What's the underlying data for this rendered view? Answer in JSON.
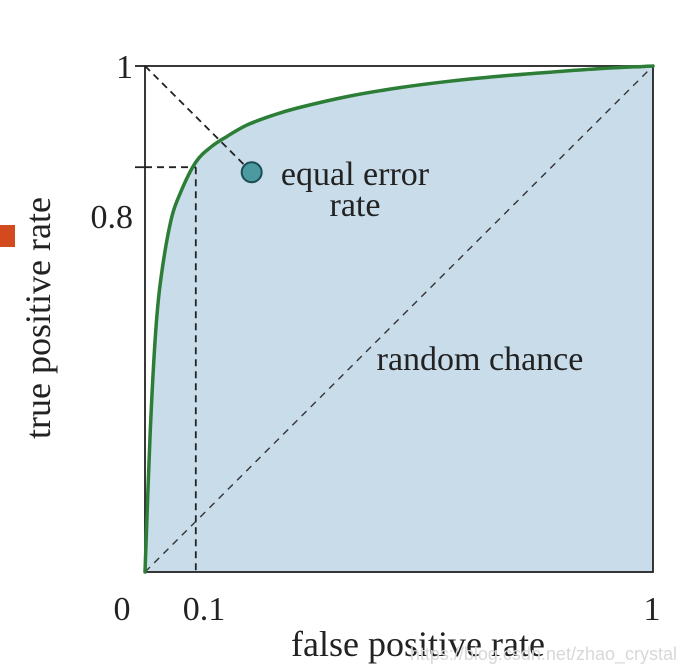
{
  "chart_data": {
    "type": "line",
    "title": "",
    "xlabel": "false positive rate",
    "ylabel": "true positive rate",
    "xlim": [
      0,
      1
    ],
    "ylim": [
      0,
      1
    ],
    "x_ticks": [
      "0",
      "0.1",
      "1"
    ],
    "y_ticks": [
      "0.8",
      "1"
    ],
    "series": [
      {
        "kind": "roc-curve",
        "x": [
          0,
          0.01,
          0.02,
          0.03,
          0.05,
          0.07,
          0.1,
          0.13,
          0.16,
          0.2,
          0.25,
          0.3,
          0.4,
          0.5,
          0.6,
          0.7,
          0.8,
          0.9,
          1.0
        ],
        "y": [
          0,
          0.27,
          0.46,
          0.57,
          0.69,
          0.75,
          0.81,
          0.84,
          0.86,
          0.883,
          0.902,
          0.917,
          0.94,
          0.957,
          0.97,
          0.98,
          0.988,
          0.995,
          1.0
        ]
      },
      {
        "kind": "random-chance",
        "x": [
          0,
          1
        ],
        "y": [
          0,
          1
        ]
      }
    ],
    "annotations": {
      "equal_error_rate": {
        "label_line1": "equal error",
        "label_line2": "rate",
        "x": 0.21,
        "y": 0.79
      },
      "random_chance": {
        "label": "random chance"
      },
      "operating_point": {
        "x": 0.1,
        "y": 0.8
      }
    },
    "fill": "#c9dcea",
    "curve_color": "#2c7d36",
    "marker_color": "#4a9aa0",
    "marker_edge": "#1c4d52"
  },
  "left_marker_color": "#d24a1e",
  "watermark": "https://blog.csdn.net/zhao_crystal"
}
